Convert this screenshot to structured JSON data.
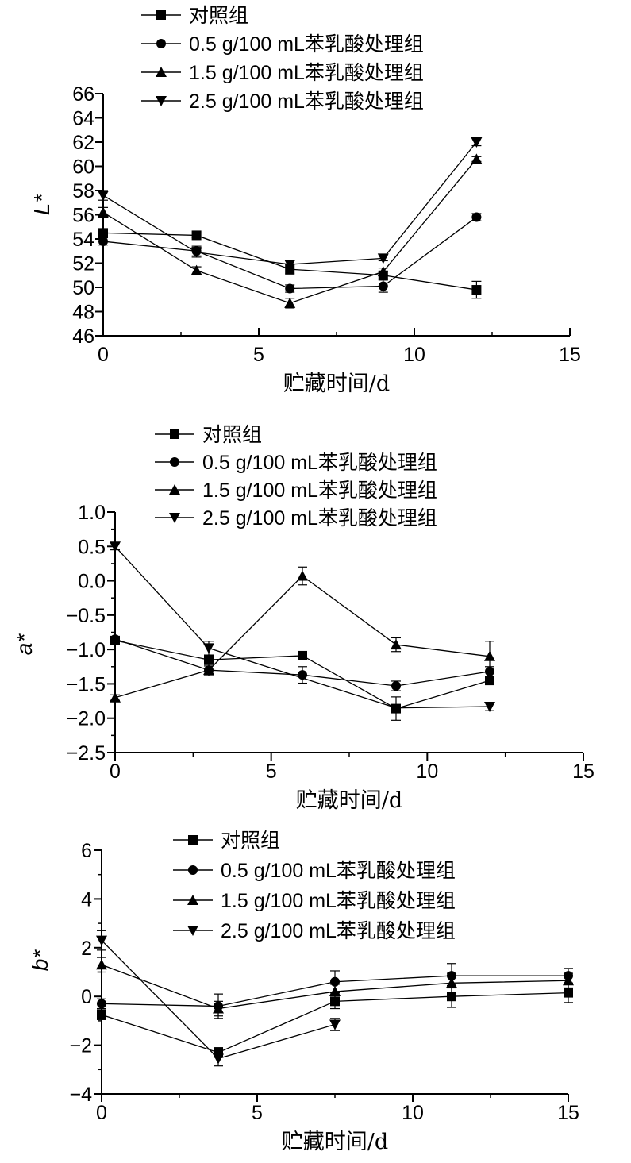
{
  "chart_data": [
    {
      "type": "line",
      "title": "",
      "xlabel": "贮藏时间/d",
      "ylabel": "L*",
      "xlim": [
        0,
        15
      ],
      "ylim": [
        46,
        66
      ],
      "x_ticks": [
        "0",
        "5",
        "10",
        "15"
      ],
      "y_ticks": [
        "46",
        "48",
        "50",
        "52",
        "54",
        "56",
        "58",
        "60",
        "62",
        "64",
        "66"
      ],
      "legend_position": "top",
      "series": [
        {
          "name": "对照组",
          "marker": "square",
          "x": [
            0,
            3,
            6,
            9,
            12
          ],
          "values": [
            54.5,
            54.3,
            51.5,
            51.0,
            49.8
          ],
          "errors": [
            0.3,
            0.2,
            0.4,
            0.3,
            0.7
          ]
        },
        {
          "name": "0.5 g/100 mL苯乳酸处理组",
          "marker": "circle",
          "x": [
            0,
            3,
            6,
            9,
            12
          ],
          "values": [
            53.8,
            53.0,
            49.9,
            50.1,
            55.8
          ],
          "errors": [
            0.3,
            0.4,
            0.3,
            0.5,
            0.3
          ]
        },
        {
          "name": "1.5 g/100 mL苯乳酸处理组",
          "marker": "triangle-up",
          "x": [
            0,
            3,
            6,
            9,
            12
          ],
          "values": [
            56.2,
            51.4,
            48.7,
            51.3,
            60.6
          ],
          "errors": [
            0.4,
            0.3,
            0.4,
            0.3,
            0.2
          ]
        },
        {
          "name": "2.5 g/100 mL苯乳酸处理组",
          "marker": "triangle-down",
          "x": [
            0,
            3,
            6,
            9,
            12
          ],
          "values": [
            57.6,
            52.9,
            51.9,
            52.4,
            62.0
          ],
          "errors": [
            0.4,
            0.4,
            0.3,
            0.2,
            0.3
          ]
        }
      ]
    },
    {
      "type": "line",
      "title": "",
      "xlabel": "贮藏时间/d",
      "ylabel": "a*",
      "xlim": [
        0,
        15
      ],
      "ylim": [
        -2.5,
        1.0
      ],
      "x_ticks": [
        "0",
        "5",
        "10",
        "15"
      ],
      "y_ticks": [
        "1.0",
        "0.5",
        "0.0",
        "−0.5",
        "−1.0",
        "−1.5",
        "−2.0",
        "−2.5"
      ],
      "legend_position": "top",
      "series": [
        {
          "name": "对照组",
          "marker": "square",
          "x": [
            0,
            3,
            6,
            9,
            12
          ],
          "values": [
            -0.87,
            -1.15,
            -1.09,
            -1.86,
            -1.45
          ],
          "errors": [
            0.04,
            0.05,
            0.06,
            0.17,
            0.06
          ]
        },
        {
          "name": "0.5 g/100 mL苯乳酸处理组",
          "marker": "circle",
          "x": [
            0,
            3,
            6,
            9,
            12
          ],
          "values": [
            -0.85,
            -1.3,
            -1.37,
            -1.53,
            -1.32
          ],
          "errors": [
            0.04,
            0.06,
            0.12,
            0.07,
            0.07
          ]
        },
        {
          "name": "1.5 g/100 mL苯乳酸处理组",
          "marker": "triangle-up",
          "x": [
            0,
            3,
            6,
            9,
            12
          ],
          "values": [
            -1.7,
            -1.3,
            0.07,
            -0.93,
            -1.1
          ],
          "errors": [
            0.04,
            0.08,
            0.13,
            0.1,
            0.22
          ]
        },
        {
          "name": "2.5 g/100 mL苯乳酸处理组",
          "marker": "triangle-down",
          "x": [
            0,
            3,
            6,
            9,
            12
          ],
          "values": [
            0.5,
            -0.98,
            null,
            null,
            -1.83
          ],
          "errors": [
            0.05,
            0.1,
            null,
            null,
            0.06
          ]
        }
      ],
      "series_line_x": [
        [
          0,
          3,
          6,
          9,
          12
        ],
        [
          0,
          3,
          6,
          9,
          12
        ],
        [
          0,
          3,
          6,
          9,
          12
        ],
        [
          0,
          3,
          9,
          12
        ]
      ],
      "series_line_values": [
        [
          -0.87,
          -1.15,
          -1.09,
          -1.86,
          -1.45
        ],
        [
          -0.85,
          -1.3,
          -1.37,
          -1.53,
          -1.32
        ],
        [
          -1.7,
          -1.3,
          0.07,
          -0.93,
          -1.1
        ],
        [
          0.5,
          -0.98,
          -1.85,
          -1.83
        ]
      ]
    },
    {
      "type": "line",
      "title": "",
      "xlabel": "贮藏时间/d",
      "ylabel": "b*",
      "xlim": [
        0,
        15
      ],
      "ylim": [
        -4,
        6
      ],
      "x_ticks": [
        "0",
        "5",
        "10",
        "15"
      ],
      "y_ticks": [
        "6",
        "4",
        "2",
        "0",
        "−2",
        "−4"
      ],
      "legend_position": "top",
      "series": [
        {
          "name": "对照组",
          "marker": "square",
          "x": [
            0,
            3.75,
            7.5,
            11.25,
            15
          ],
          "values": [
            -0.75,
            -2.3,
            -0.2,
            0.0,
            0.15
          ],
          "errors": [
            0.2,
            0.2,
            0.3,
            0.45,
            0.4
          ]
        },
        {
          "name": "0.5 g/100 mL苯乳酸处理组",
          "marker": "circle",
          "x": [
            0,
            3.75,
            7.5,
            11.25,
            15
          ],
          "values": [
            -0.3,
            -0.4,
            0.6,
            0.85,
            0.85
          ],
          "errors": [
            0.2,
            0.5,
            0.45,
            0.5,
            0.3
          ]
        },
        {
          "name": "1.5 g/100 mL苯乳酸处理组",
          "marker": "triangle-up",
          "x": [
            0,
            3.75,
            7.5,
            11.25,
            15
          ],
          "values": [
            1.3,
            -0.5,
            0.2,
            0.55,
            0.65
          ],
          "errors": [
            0.3,
            0.3,
            0.3,
            0.4,
            0.3
          ]
        },
        {
          "name": "2.5 g/100 mL苯乳酸处理组",
          "marker": "triangle-down",
          "x": [
            0,
            3.75,
            7.5,
            11.25,
            15
          ],
          "values": [
            2.3,
            -2.55,
            -1.15,
            null,
            null
          ],
          "errors": [
            0.4,
            0.3,
            0.25,
            null,
            null
          ]
        }
      ]
    }
  ]
}
